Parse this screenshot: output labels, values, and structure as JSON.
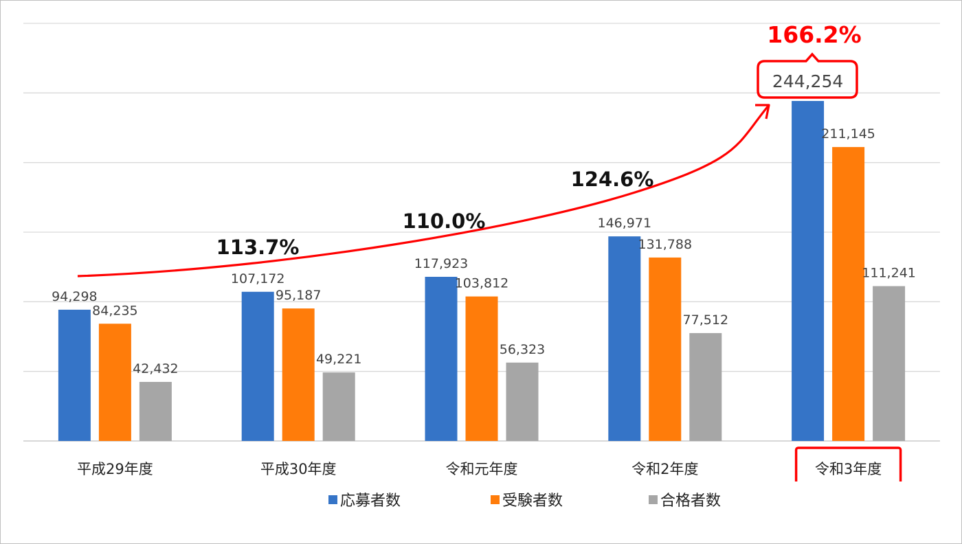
{
  "chart_data": {
    "type": "bar",
    "categories": [
      "平成29年度",
      "平成30年度",
      "令和元年度",
      "令和2年度",
      "令和3年度"
    ],
    "series": [
      {
        "name": "応募者数",
        "color": "#3574c7",
        "values": [
          94298,
          107172,
          117923,
          146971,
          244254
        ]
      },
      {
        "name": "受験者数",
        "color": "#ff7c0a",
        "values": [
          84235,
          95187,
          103812,
          131788,
          211145
        ]
      },
      {
        "name": "合格者数",
        "color": "#a6a6a6",
        "values": [
          42432,
          49221,
          56323,
          77512,
          111241
        ]
      }
    ],
    "data_labels": [
      [
        "94,298",
        "107,172",
        "117,923",
        "146,971",
        "244,254"
      ],
      [
        "84,235",
        "95,187",
        "103,812",
        "131,788",
        "211,145"
      ],
      [
        "42,432",
        "49,221",
        "56,323",
        "77,512",
        "111,241"
      ]
    ],
    "ylim": [
      0,
      300000
    ],
    "ytick_step": 50000,
    "y_tick_labels_visible": false,
    "grid": true,
    "legend": "bottom",
    "highlighted_category": "令和3年度",
    "highlight_color": "#ff0000",
    "annotations": {
      "growth_rates": [
        "113.7%",
        "110.0%",
        "124.6%",
        "166.2%"
      ],
      "trend_arrow": true
    }
  }
}
